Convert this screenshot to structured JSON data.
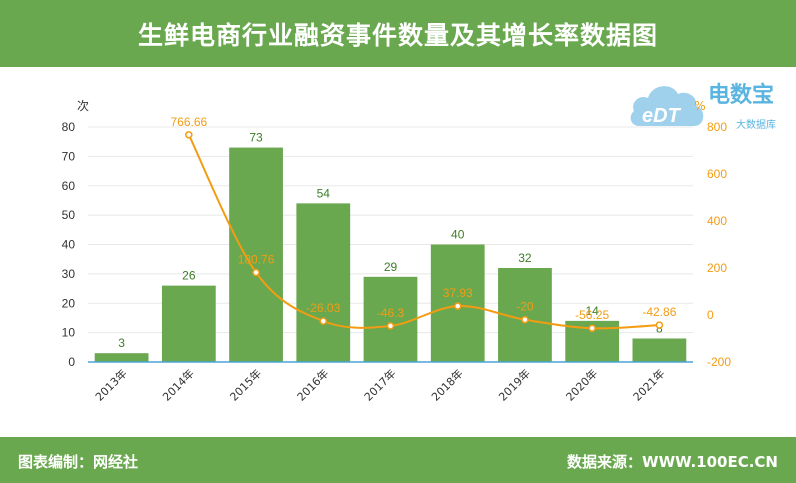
{
  "header": {
    "title": "生鲜电商行业融资事件数量及其增长率数据图"
  },
  "footer": {
    "editor": "图表编制：网经社",
    "source": "数据来源：WWW.100EC.CN"
  },
  "logo": {
    "mark": "eDT",
    "brand": "电数宝",
    "tagline": "大数据库"
  },
  "colors": {
    "header_bg": "#6aa84f",
    "bar": "#6aa84f",
    "line": "#f39c12",
    "axis_line": "#4aa6d6",
    "grid": "#e8e8e8"
  },
  "chart_data": {
    "type": "bar+line",
    "categories": [
      "2013年",
      "2014年",
      "2015年",
      "2016年",
      "2017年",
      "2018年",
      "2019年",
      "2020年",
      "2021年"
    ],
    "series": [
      {
        "values": [
          3,
          26,
          73,
          54,
          29,
          40,
          32,
          14,
          8
        ],
        "axis": "left"
      },
      {
        "values": [
          null,
          766.66,
          180.76,
          -26.03,
          -46.3,
          37.93,
          -20,
          -56.25,
          -42.86
        ],
        "axis": "right"
      }
    ],
    "left_axis": {
      "label": "次",
      "ylim": [
        0,
        80
      ],
      "ticks": [
        0,
        10,
        20,
        30,
        40,
        50,
        60,
        70,
        80
      ]
    },
    "right_axis": {
      "label": "%",
      "ylim": [
        -200,
        800
      ],
      "ticks": [
        -200,
        0,
        200,
        400,
        600,
        800
      ]
    },
    "bar_labels": [
      "3",
      "26",
      "73",
      "54",
      "29",
      "40",
      "32",
      "14",
      "8"
    ],
    "line_labels": [
      "",
      "766.66",
      "180.76",
      "-26.03",
      "-46.3",
      "37.93",
      "-20",
      "-56.25",
      "-42.86"
    ],
    "grid": true
  }
}
